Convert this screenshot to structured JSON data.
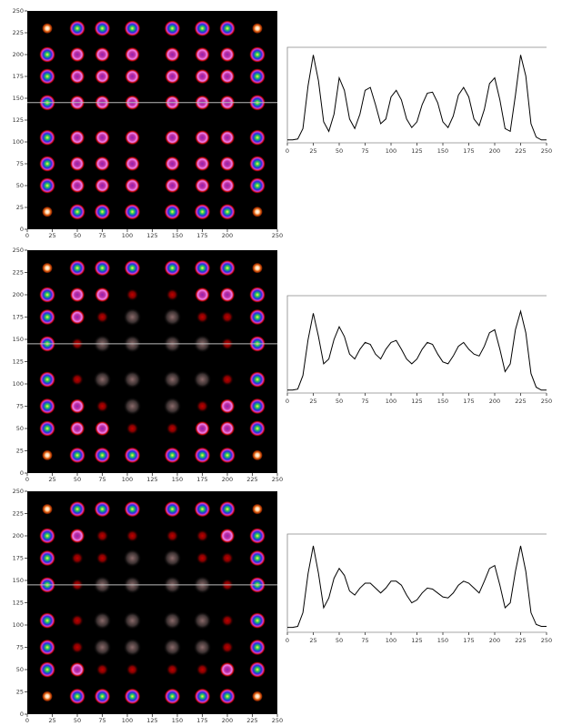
{
  "chart_data": [
    {
      "type": "heatmap",
      "xlim": [
        0,
        250
      ],
      "ylim": [
        0,
        250
      ],
      "xticks": [
        0,
        25,
        50,
        75,
        100,
        125,
        150,
        175,
        200,
        250
      ],
      "yticks": [
        0,
        25,
        50,
        75,
        100,
        125,
        150,
        175,
        200,
        225,
        250
      ],
      "cut_line": 145,
      "spot_x": [
        20,
        50,
        75,
        105,
        145,
        175,
        200,
        230
      ],
      "spot_y": [
        230,
        200,
        175,
        145,
        105,
        75,
        50,
        20
      ],
      "levels": [
        [
          4,
          3,
          3,
          3,
          3,
          3,
          3,
          4
        ],
        [
          3,
          2,
          2,
          2,
          2,
          2,
          2,
          3
        ],
        [
          3,
          2,
          2,
          2,
          2,
          2,
          2,
          3
        ],
        [
          3,
          2,
          2,
          2,
          2,
          2,
          2,
          3
        ],
        [
          3,
          2,
          2,
          2,
          2,
          2,
          2,
          3
        ],
        [
          3,
          2,
          2,
          2,
          2,
          2,
          2,
          3
        ],
        [
          3,
          2,
          2,
          2,
          2,
          2,
          2,
          3
        ],
        [
          4,
          3,
          3,
          3,
          3,
          3,
          3,
          4
        ]
      ]
    },
    {
      "type": "line",
      "xlim": [
        0,
        250
      ],
      "ylim": [
        0,
        100
      ],
      "xticks": [
        0,
        25,
        50,
        75,
        100,
        125,
        150,
        175,
        200,
        225,
        250
      ],
      "color": "#000000",
      "x": [
        0,
        5,
        10,
        15,
        20,
        25,
        30,
        35,
        40,
        45,
        50,
        55,
        60,
        65,
        70,
        75,
        80,
        85,
        90,
        95,
        100,
        105,
        110,
        115,
        120,
        125,
        130,
        135,
        140,
        145,
        150,
        155,
        160,
        165,
        170,
        175,
        180,
        185,
        190,
        195,
        200,
        205,
        210,
        215,
        220,
        225,
        230,
        235,
        240,
        245,
        250
      ],
      "values": [
        3,
        3,
        4,
        15,
        60,
        92,
        65,
        22,
        12,
        30,
        68,
        55,
        25,
        15,
        30,
        55,
        58,
        40,
        20,
        25,
        48,
        55,
        45,
        25,
        16,
        22,
        40,
        52,
        53,
        42,
        22,
        16,
        28,
        50,
        58,
        48,
        25,
        18,
        35,
        62,
        68,
        45,
        15,
        12,
        50,
        92,
        70,
        20,
        6,
        3,
        3
      ]
    },
    {
      "type": "heatmap",
      "xlim": [
        0,
        250
      ],
      "ylim": [
        0,
        250
      ],
      "xticks": [
        0,
        25,
        50,
        75,
        100,
        125,
        150,
        175,
        200,
        225,
        250
      ],
      "yticks": [
        0,
        25,
        50,
        75,
        100,
        125,
        150,
        175,
        200,
        225,
        250
      ],
      "cut_line": 145,
      "spot_x": [
        20,
        50,
        75,
        105,
        145,
        175,
        200,
        230
      ],
      "spot_y": [
        230,
        200,
        175,
        145,
        105,
        75,
        50,
        20
      ],
      "levels": [
        [
          4,
          3,
          3,
          3,
          3,
          3,
          3,
          4
        ],
        [
          3,
          2,
          2,
          1,
          1,
          2,
          2,
          3
        ],
        [
          3,
          2,
          1,
          0,
          0,
          1,
          1,
          3
        ],
        [
          3,
          1,
          0,
          0,
          0,
          0,
          1,
          3
        ],
        [
          3,
          1,
          0,
          0,
          0,
          0,
          1,
          3
        ],
        [
          3,
          2,
          1,
          0,
          0,
          1,
          2,
          3
        ],
        [
          3,
          2,
          2,
          1,
          1,
          2,
          2,
          3
        ],
        [
          4,
          3,
          3,
          3,
          3,
          3,
          3,
          4
        ]
      ]
    },
    {
      "type": "line",
      "xlim": [
        0,
        250
      ],
      "ylim": [
        0,
        100
      ],
      "xticks": [
        0,
        25,
        50,
        75,
        100,
        125,
        150,
        175,
        200,
        225,
        250
      ],
      "color": "#000000",
      "x": [
        0,
        5,
        10,
        15,
        20,
        25,
        30,
        35,
        40,
        45,
        50,
        55,
        60,
        65,
        70,
        75,
        80,
        85,
        90,
        95,
        100,
        105,
        110,
        115,
        120,
        125,
        130,
        135,
        140,
        145,
        150,
        155,
        160,
        165,
        170,
        175,
        180,
        185,
        190,
        195,
        200,
        205,
        210,
        215,
        220,
        225,
        230,
        235,
        240,
        245,
        250
      ],
      "values": [
        3,
        3,
        4,
        18,
        55,
        82,
        58,
        30,
        35,
        55,
        68,
        58,
        40,
        35,
        45,
        52,
        50,
        40,
        35,
        45,
        52,
        54,
        45,
        35,
        30,
        35,
        45,
        52,
        50,
        40,
        32,
        30,
        38,
        48,
        52,
        45,
        40,
        38,
        48,
        62,
        65,
        45,
        22,
        30,
        65,
        84,
        62,
        20,
        6,
        3,
        3
      ]
    },
    {
      "type": "heatmap",
      "xlim": [
        0,
        250
      ],
      "ylim": [
        0,
        250
      ],
      "xticks": [
        0,
        25,
        50,
        75,
        100,
        125,
        150,
        175,
        200,
        225,
        250
      ],
      "yticks": [
        0,
        25,
        50,
        75,
        100,
        125,
        150,
        175,
        200,
        225,
        250
      ],
      "cut_line": 145,
      "spot_x": [
        20,
        50,
        75,
        105,
        145,
        175,
        200,
        230
      ],
      "spot_y": [
        230,
        200,
        175,
        145,
        105,
        75,
        50,
        20
      ],
      "levels": [
        [
          4,
          3,
          3,
          3,
          3,
          3,
          3,
          4
        ],
        [
          3,
          2,
          1,
          1,
          1,
          1,
          2,
          3
        ],
        [
          3,
          1,
          1,
          0,
          0,
          1,
          1,
          3
        ],
        [
          3,
          1,
          0,
          0,
          0,
          0,
          1,
          3
        ],
        [
          3,
          1,
          0,
          0,
          0,
          0,
          1,
          3
        ],
        [
          3,
          1,
          0,
          0,
          0,
          0,
          1,
          3
        ],
        [
          3,
          2,
          1,
          1,
          1,
          1,
          2,
          3
        ],
        [
          4,
          3,
          3,
          3,
          3,
          3,
          3,
          4
        ]
      ]
    },
    {
      "type": "line",
      "xlim": [
        0,
        250
      ],
      "ylim": [
        0,
        100
      ],
      "xticks": [
        0,
        25,
        50,
        75,
        100,
        125,
        150,
        175,
        200,
        225,
        250
      ],
      "color": "#000000",
      "x": [
        0,
        5,
        10,
        15,
        20,
        25,
        30,
        35,
        40,
        45,
        50,
        55,
        60,
        65,
        70,
        75,
        80,
        85,
        90,
        95,
        100,
        105,
        110,
        115,
        120,
        125,
        130,
        135,
        140,
        145,
        150,
        155,
        160,
        165,
        170,
        175,
        180,
        185,
        190,
        195,
        200,
        205,
        210,
        215,
        220,
        225,
        230,
        235,
        240,
        245,
        250
      ],
      "values": [
        5,
        5,
        6,
        20,
        60,
        88,
        60,
        25,
        35,
        55,
        65,
        58,
        42,
        38,
        45,
        50,
        50,
        45,
        40,
        45,
        52,
        52,
        48,
        38,
        30,
        33,
        40,
        45,
        44,
        40,
        36,
        35,
        40,
        48,
        52,
        50,
        45,
        40,
        52,
        65,
        68,
        48,
        25,
        30,
        62,
        88,
        62,
        20,
        8,
        6,
        6
      ]
    }
  ]
}
